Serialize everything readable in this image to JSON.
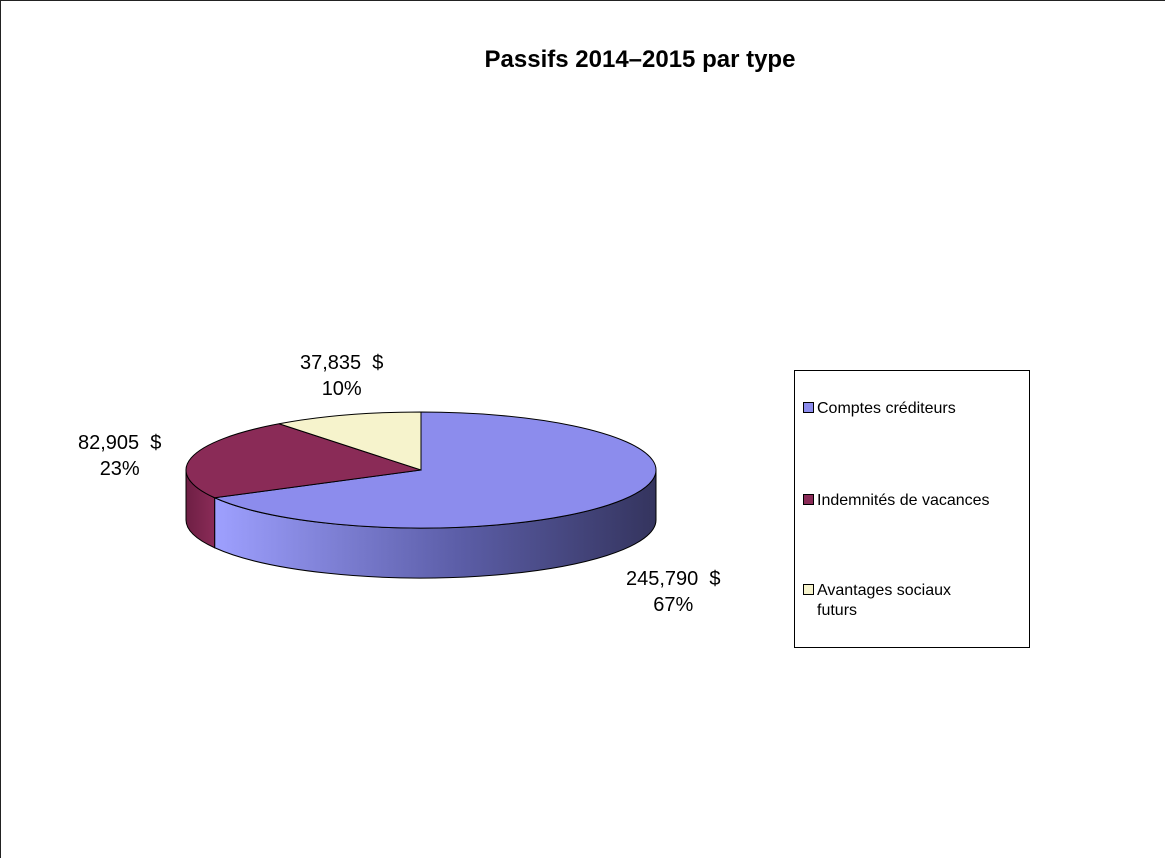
{
  "chart_data": {
    "type": "pie",
    "title": "Passifs 2014–2015 par type",
    "currency": "$",
    "slices": [
      {
        "name": "Comptes créditeurs",
        "value": 245790,
        "value_label": "245,790",
        "percent_label": "67%",
        "color": "#8c8ced"
      },
      {
        "name": "Indemnités de vacances",
        "value": 82905,
        "value_label": "82,905",
        "percent_label": "23%",
        "color": "#8a2b57"
      },
      {
        "name": "Avantages sociaux futurs",
        "value": 37835,
        "value_label": "37,835",
        "percent_label": "10%",
        "color": "#f6f3cc"
      }
    ],
    "legend_position": "right",
    "three_d": true
  }
}
